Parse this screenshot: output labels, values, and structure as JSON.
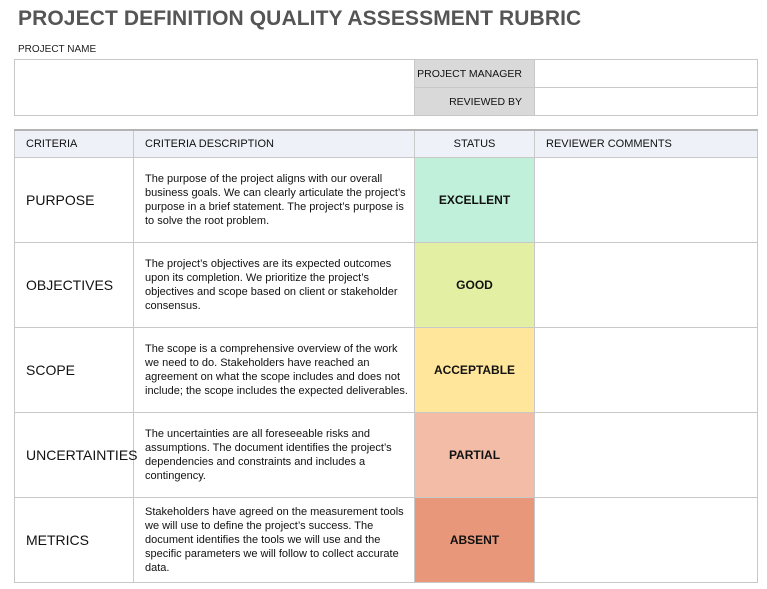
{
  "header": {
    "title": "PROJECT DEFINITION QUALITY ASSESSMENT RUBRIC",
    "project_name_label": "PROJECT NAME",
    "project_manager_label": "PROJECT MANAGER",
    "reviewed_by_label": "REVIEWED BY"
  },
  "table": {
    "columns": [
      "CRITERIA",
      "CRITERIA DESCRIPTION",
      "STATUS",
      "REVIEWER COMMENTS"
    ],
    "rows": [
      {
        "criteria": "PURPOSE",
        "description": "The purpose of the project aligns with our overall business goals. We can clearly articulate the project’s purpose in a brief statement. The project’s purpose is to solve the root problem.",
        "status": "EXCELLENT",
        "color": "#c0f0d9"
      },
      {
        "criteria": "OBJECTIVES",
        "description": "The project’s objectives are its expected outcomes upon its completion. We prioritize the project’s objectives and scope based on client or stakeholder consensus.",
        "status": "GOOD",
        "color": "#e3f0a3"
      },
      {
        "criteria": "SCOPE",
        "description": "The scope is a comprehensive overview of the work we need to do. Stakeholders have reached an agreement on what the scope includes and does not include; the scope includes the expected deliverables.",
        "status": "ACCEPTABLE",
        "color": "#ffe69a"
      },
      {
        "criteria": "UNCERTAINTIES",
        "description": "The uncertainties are all foreseeable risks and assumptions. The document identifies the project’s dependencies and constraints and includes a contingency.",
        "status": "PARTIAL",
        "color": "#f3bca7"
      },
      {
        "criteria": "METRICS",
        "description": "Stakeholders have agreed on the measurement tools we will use to define the project’s success. The document identifies the tools we will use and the specific parameters we will follow to collect accurate data.",
        "status": "ABSENT",
        "color": "#e9977a"
      }
    ]
  }
}
